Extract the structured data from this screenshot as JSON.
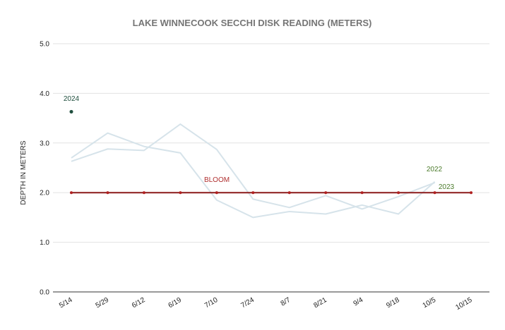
{
  "chart_data": {
    "type": "line",
    "title": "LAKE WINNECOOK SECCHI DISK READING (METERS)",
    "xlabel": "",
    "ylabel": "DEPTH IN METERS",
    "categories": [
      "5/14",
      "5/29",
      "6/12",
      "6/19",
      "7/10",
      "7/24",
      "8/7",
      "8/21",
      "9/4",
      "9/18",
      "10/5",
      "10/15"
    ],
    "ylim": [
      0,
      5
    ],
    "yticks": [
      "0.0",
      "1.0",
      "2.0",
      "3.0",
      "4.0",
      "5.0"
    ],
    "grid": true,
    "series": [
      {
        "name": "2022",
        "color": "#d6e3ea",
        "values": [
          2.7,
          3.2,
          2.93,
          2.8,
          1.85,
          1.5,
          1.62,
          1.57,
          1.75,
          1.57,
          2.22,
          null
        ]
      },
      {
        "name": "2023",
        "color": "#d6e3ea",
        "values": [
          2.63,
          2.88,
          2.85,
          3.38,
          2.87,
          1.87,
          1.7,
          1.94,
          1.67,
          1.92,
          2.2,
          null
        ]
      },
      {
        "name": "2024",
        "color": "#1f4e3d",
        "values": [
          3.63,
          null,
          null,
          null,
          null,
          null,
          null,
          null,
          null,
          null,
          null,
          null
        ]
      },
      {
        "name": "BLOOM",
        "color": "#8b1a1a",
        "values": [
          2,
          2,
          2,
          2,
          2,
          2,
          2,
          2,
          2,
          2,
          2,
          2
        ]
      }
    ],
    "annotations": [
      {
        "text": "2024",
        "color": "#1f4e3d"
      },
      {
        "text": "BLOOM",
        "color": "#b03030"
      },
      {
        "text": "2022",
        "color": "#4a7a2a"
      },
      {
        "text": "2023",
        "color": "#4a7a2a"
      }
    ]
  }
}
